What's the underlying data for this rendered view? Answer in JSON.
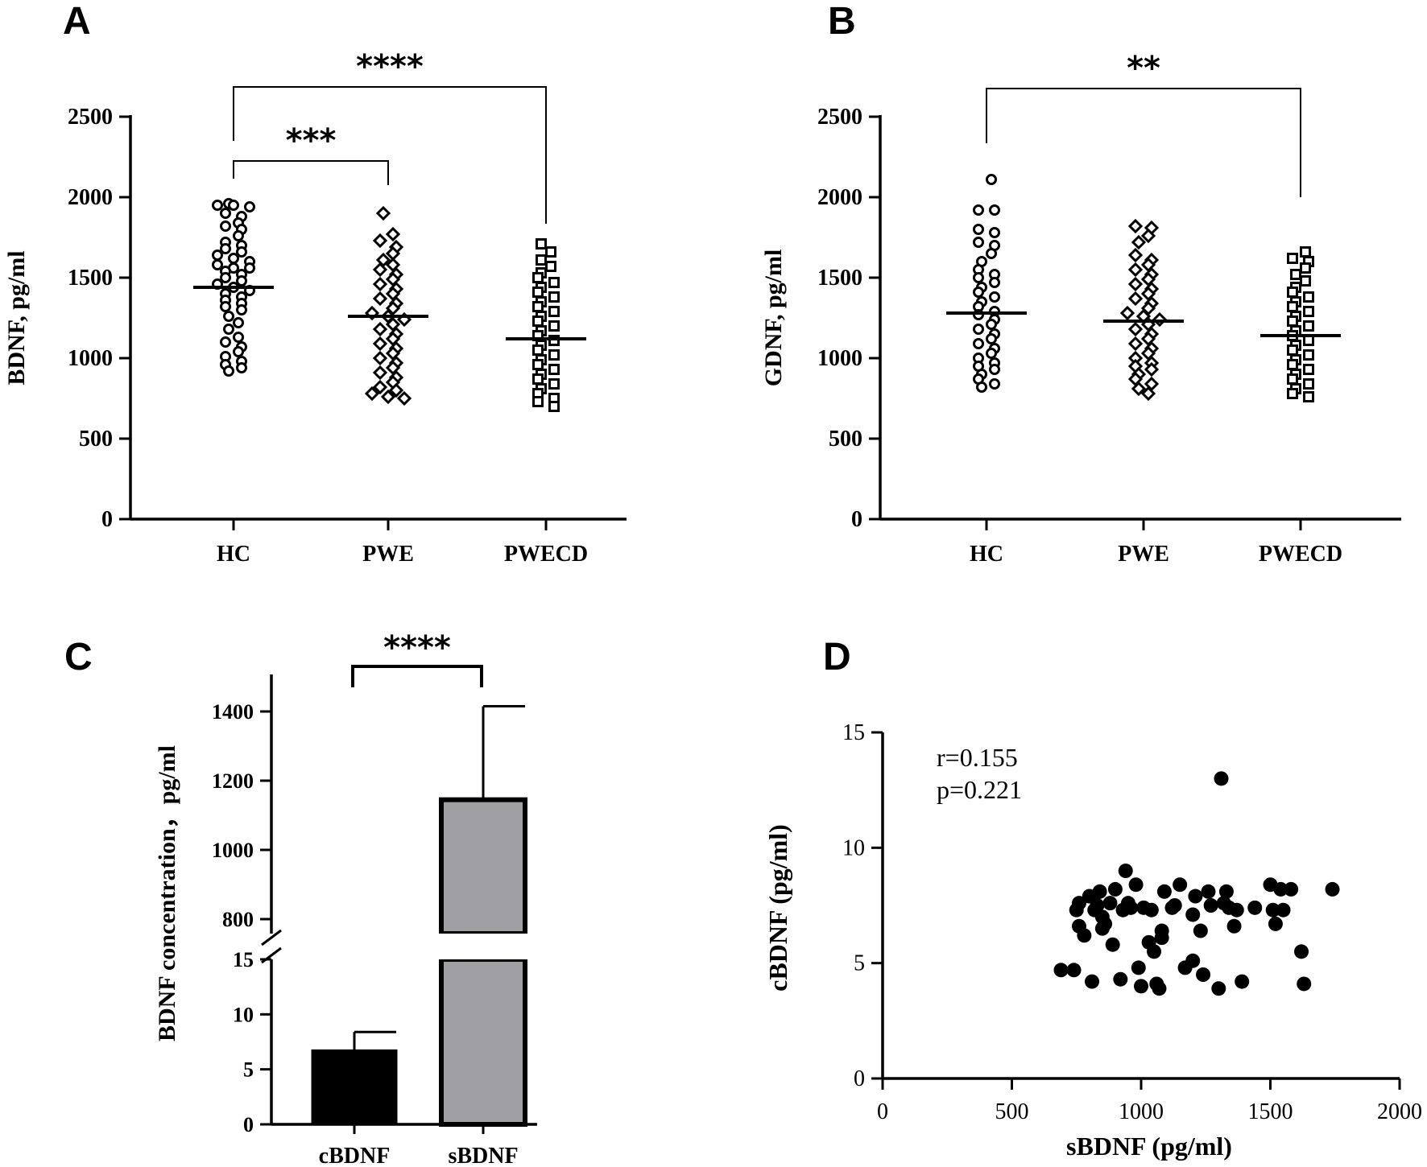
{
  "chart_data": [
    {
      "panel": "A",
      "type": "scatter",
      "ylabel": "BDNF, pg/ml",
      "ylim": [
        0,
        2500
      ],
      "yticks": [
        0,
        500,
        1000,
        1500,
        2000,
        2500
      ],
      "categories": [
        "HC",
        "PWE",
        "PWECD"
      ],
      "markers": [
        "circle",
        "diamond",
        "square"
      ],
      "medians": [
        1440,
        1260,
        1120
      ],
      "groups": [
        [
          1960,
          1950,
          1950,
          1940,
          1900,
          1880,
          1840,
          1820,
          1800,
          1760,
          1720,
          1700,
          1680,
          1660,
          1640,
          1620,
          1600,
          1580,
          1560,
          1560,
          1540,
          1520,
          1500,
          1480,
          1460,
          1440,
          1420,
          1400,
          1380,
          1360,
          1340,
          1320,
          1300,
          1260,
          1220,
          1180,
          1130,
          1100,
          1070,
          1040,
          1010,
          980,
          960,
          940,
          920
        ],
        [
          1900,
          1770,
          1730,
          1690,
          1650,
          1610,
          1580,
          1550,
          1520,
          1490,
          1460,
          1430,
          1400,
          1370,
          1340,
          1310,
          1280,
          1260,
          1240,
          1210,
          1180,
          1150,
          1120,
          1090,
          1060,
          1030,
          1000,
          970,
          940,
          910,
          880,
          850,
          820,
          800,
          780,
          760,
          750
        ],
        [
          1710,
          1660,
          1610,
          1570,
          1530,
          1500,
          1470,
          1440,
          1410,
          1380,
          1350,
          1320,
          1290,
          1260,
          1230,
          1200,
          1170,
          1140,
          1110,
          1080,
          1050,
          1020,
          990,
          960,
          930,
          900,
          870,
          840,
          810,
          780,
          750,
          730,
          700
        ]
      ],
      "brackets": [
        {
          "from": "HC",
          "to": "PWE",
          "label": "***"
        },
        {
          "from": "HC",
          "to": "PWECD",
          "label": "****"
        }
      ]
    },
    {
      "panel": "B",
      "type": "scatter",
      "ylabel": "GDNF, pg/ml",
      "ylim": [
        0,
        2500
      ],
      "yticks": [
        0,
        500,
        1000,
        1500,
        2000,
        2500
      ],
      "categories": [
        "HC",
        "PWE",
        "PWECD"
      ],
      "markers": [
        "circle",
        "diamond",
        "square"
      ],
      "medians": [
        1280,
        1230,
        1140
      ],
      "groups": [
        [
          2110,
          1920,
          1920,
          1800,
          1780,
          1720,
          1700,
          1650,
          1600,
          1550,
          1520,
          1500,
          1470,
          1440,
          1410,
          1380,
          1350,
          1320,
          1290,
          1270,
          1240,
          1210,
          1180,
          1150,
          1120,
          1090,
          1060,
          1030,
          1000,
          970,
          950,
          930,
          900,
          870,
          840,
          820
        ],
        [
          1820,
          1810,
          1760,
          1720,
          1640,
          1610,
          1580,
          1550,
          1520,
          1490,
          1460,
          1430,
          1400,
          1370,
          1340,
          1310,
          1280,
          1260,
          1240,
          1210,
          1180,
          1150,
          1120,
          1090,
          1060,
          1030,
          1000,
          970,
          950,
          930,
          900,
          870,
          840,
          810,
          780
        ],
        [
          1660,
          1620,
          1600,
          1560,
          1520,
          1480,
          1440,
          1410,
          1380,
          1350,
          1320,
          1290,
          1260,
          1230,
          1200,
          1170,
          1140,
          1110,
          1080,
          1050,
          1020,
          990,
          960,
          930,
          900,
          870,
          840,
          810,
          780,
          760
        ]
      ],
      "brackets": [
        {
          "from": "HC",
          "to": "PWECD",
          "label": "**"
        }
      ]
    },
    {
      "panel": "C",
      "type": "bar",
      "ylabel": "BDNF concentration，pg/ml",
      "categories": [
        "cBDNF",
        "sBDNF"
      ],
      "values": [
        6.7,
        1145
      ],
      "errors_upper": [
        8.4,
        1415
      ],
      "fills": [
        "#000000",
        "#a0a0a4"
      ],
      "lower_ticks": [
        0,
        5,
        10,
        15
      ],
      "upper_ticks": [
        800,
        1000,
        1200,
        1400
      ],
      "axis_break": [
        15,
        760
      ],
      "bracket_label": "****"
    },
    {
      "panel": "D",
      "type": "scatter",
      "xlabel": "sBDNF (pg/ml)",
      "ylabel": "cBDNF (pg/ml)",
      "xlim": [
        0,
        2000
      ],
      "ylim": [
        0,
        15
      ],
      "xticks": [
        0,
        500,
        1000,
        1500,
        2000
      ],
      "yticks": [
        0,
        5,
        10,
        15
      ],
      "annotation_r": "r=0.155",
      "annotation_p": "p=0.221",
      "x": [
        690,
        740,
        750,
        760,
        780,
        800,
        810,
        820,
        830,
        840,
        850,
        860,
        880,
        890,
        900,
        920,
        930,
        940,
        950,
        960,
        980,
        990,
        1000,
        1010,
        1030,
        1040,
        1050,
        1060,
        1070,
        1080,
        1090,
        1120,
        1130,
        1150,
        1170,
        1200,
        1210,
        1230,
        1240,
        1260,
        1270,
        1300,
        1310,
        1320,
        1330,
        1340,
        1360,
        1370,
        1390,
        1440,
        1500,
        1510,
        1520,
        1540,
        1550,
        1580,
        1620,
        1630,
        1740,
        760,
        850,
        1080,
        1200
      ],
      "y": [
        4.7,
        4.7,
        7.3,
        6.6,
        6.2,
        7.9,
        4.2,
        7.3,
        7.5,
        8.1,
        6.5,
        6.7,
        7.6,
        5.8,
        8.2,
        4.3,
        7.3,
        9.0,
        7.6,
        7.4,
        8.4,
        4.8,
        4.0,
        7.4,
        5.9,
        7.3,
        5.5,
        4.1,
        3.9,
        6.4,
        8.1,
        7.4,
        7.5,
        8.4,
        4.8,
        5.1,
        7.9,
        6.4,
        4.5,
        8.1,
        7.5,
        3.9,
        13.0,
        7.6,
        8.1,
        7.4,
        6.6,
        7.3,
        4.2,
        7.4,
        8.4,
        7.3,
        6.7,
        8.2,
        7.3,
        8.2,
        5.5,
        4.1,
        8.2,
        7.6,
        7.0,
        6.1,
        7.1
      ]
    }
  ],
  "labels": {
    "panel_a": "A",
    "panel_b": "B",
    "panel_c": "C",
    "panel_d": "D"
  }
}
